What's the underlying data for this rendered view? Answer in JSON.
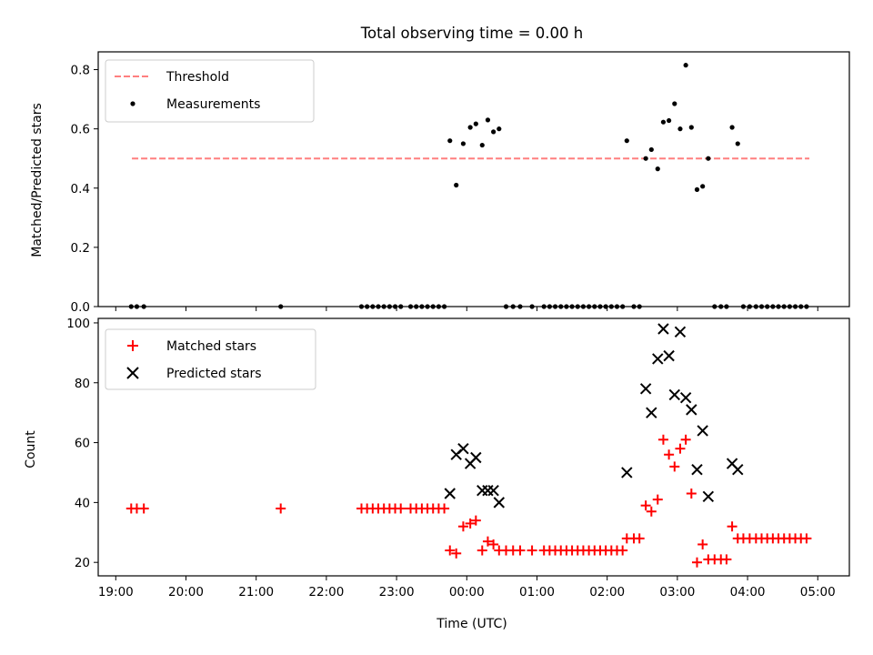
{
  "chart_data": [
    {
      "type": "scatter",
      "title": "Total observing time = 0.00 h",
      "xlabel": "",
      "ylabel": "Matched/Predicted stars",
      "xlim": [
        18.75,
        29.45
      ],
      "ylim": [
        0,
        0.86
      ],
      "yticks": [
        0.0,
        0.2,
        0.4,
        0.6,
        0.8
      ],
      "ytick_labels": [
        "0.0",
        "0.2",
        "0.4",
        "0.6",
        "0.8"
      ],
      "xticks": [
        19,
        20,
        21,
        22,
        23,
        24,
        25,
        26,
        27,
        28,
        29
      ],
      "legend_position": "top-left",
      "series": [
        {
          "name": "Threshold",
          "kind": "line",
          "style": "dashed",
          "color": "#ff7f7f",
          "x": [
            19.23,
            28.88
          ],
          "y": [
            0.5,
            0.5
          ]
        },
        {
          "name": "Measurements",
          "kind": "scatter",
          "marker": "dot",
          "color": "#000000",
          "x": [
            19.22,
            19.3,
            19.4,
            21.35,
            22.5,
            22.58,
            22.66,
            22.74,
            22.82,
            22.9,
            22.98,
            23.06,
            23.2,
            23.28,
            23.36,
            23.44,
            23.52,
            23.6,
            23.68,
            23.76,
            23.85,
            23.95,
            24.05,
            24.13,
            24.22,
            24.3,
            24.38,
            24.46,
            24.56,
            24.66,
            24.76,
            24.93,
            25.1,
            25.18,
            25.26,
            25.34,
            25.42,
            25.5,
            25.58,
            25.66,
            25.74,
            25.82,
            25.9,
            25.98,
            26.06,
            26.14,
            26.22,
            26.28,
            26.38,
            26.46,
            26.55,
            26.63,
            26.72,
            26.8,
            26.88,
            26.96,
            27.04,
            27.12,
            27.2,
            27.28,
            27.36,
            27.44,
            27.53,
            27.62,
            27.7,
            27.78,
            27.86,
            27.94,
            28.03,
            28.12,
            28.2,
            28.28,
            28.36,
            28.44,
            28.52,
            28.6,
            28.68,
            28.76,
            28.84
          ],
          "y": [
            0.0,
            0.0,
            0.0,
            0.0,
            0.0,
            0.0,
            0.0,
            0.0,
            0.0,
            0.0,
            0.0,
            0.0,
            0.0,
            0.0,
            0.0,
            0.0,
            0.0,
            0.0,
            0.0,
            0.56,
            0.41,
            0.55,
            0.605,
            0.617,
            0.545,
            0.63,
            0.59,
            0.6,
            0.0,
            0.0,
            0.0,
            0.0,
            0.0,
            0.0,
            0.0,
            0.0,
            0.0,
            0.0,
            0.0,
            0.0,
            0.0,
            0.0,
            0.0,
            0.0,
            0.0,
            0.0,
            0.0,
            0.56,
            0.0,
            0.0,
            0.5,
            0.53,
            0.465,
            0.623,
            0.628,
            0.685,
            0.6,
            0.815,
            0.605,
            0.395,
            0.406,
            0.5,
            0.0,
            0.0,
            0.0,
            0.605,
            0.55,
            0.0,
            0.0,
            0.0,
            0.0,
            0.0,
            0.0,
            0.0,
            0.0,
            0.0,
            0.0,
            0.0,
            0.0
          ]
        }
      ]
    },
    {
      "type": "scatter",
      "title": "",
      "xlabel": "Time (UTC)",
      "ylabel": "Count",
      "xlim": [
        18.75,
        29.45
      ],
      "ylim": [
        15.5,
        101.5
      ],
      "yticks": [
        20,
        40,
        60,
        80,
        100
      ],
      "xticks": [
        19,
        20,
        21,
        22,
        23,
        24,
        25,
        26,
        27,
        28,
        29
      ],
      "xtick_labels": [
        "19:00",
        "20:00",
        "21:00",
        "22:00",
        "23:00",
        "00:00",
        "01:00",
        "02:00",
        "03:00",
        "04:00",
        "05:00"
      ],
      "legend_position": "top-left",
      "series": [
        {
          "name": "Matched stars",
          "kind": "scatter",
          "marker": "plus",
          "color": "#ff0000",
          "x": [
            19.22,
            19.3,
            19.4,
            21.35,
            22.5,
            22.58,
            22.66,
            22.74,
            22.82,
            22.9,
            22.98,
            23.06,
            23.2,
            23.28,
            23.36,
            23.44,
            23.52,
            23.6,
            23.68,
            23.76,
            23.85,
            23.95,
            24.05,
            24.13,
            24.22,
            24.3,
            24.38,
            24.46,
            24.56,
            24.66,
            24.76,
            24.93,
            25.1,
            25.18,
            25.26,
            25.34,
            25.42,
            25.5,
            25.58,
            25.66,
            25.74,
            25.82,
            25.9,
            25.98,
            26.06,
            26.14,
            26.22,
            26.28,
            26.38,
            26.46,
            26.55,
            26.63,
            26.72,
            26.8,
            26.88,
            26.96,
            27.04,
            27.12,
            27.2,
            27.28,
            27.36,
            27.44,
            27.53,
            27.62,
            27.7,
            27.78,
            27.86,
            27.94,
            28.03,
            28.12,
            28.2,
            28.28,
            28.36,
            28.44,
            28.52,
            28.6,
            28.68,
            28.76,
            28.84
          ],
          "y": [
            38,
            38,
            38,
            38,
            38,
            38,
            38,
            38,
            38,
            38,
            38,
            38,
            38,
            38,
            38,
            38,
            38,
            38,
            38,
            24,
            23,
            32,
            33,
            34,
            24,
            27,
            26,
            24,
            24,
            24,
            24,
            24,
            24,
            24,
            24,
            24,
            24,
            24,
            24,
            24,
            24,
            24,
            24,
            24,
            24,
            24,
            24,
            28,
            28,
            28,
            39,
            37,
            41,
            61,
            56,
            52,
            58,
            61,
            43,
            20,
            26,
            21,
            21,
            21,
            21,
            32,
            28,
            28,
            28,
            28,
            28,
            28,
            28,
            28,
            28,
            28,
            28,
            28,
            28
          ]
        },
        {
          "name": "Predicted stars",
          "kind": "scatter",
          "marker": "x",
          "color": "#000000",
          "x": [
            23.76,
            23.85,
            23.95,
            24.05,
            24.13,
            24.22,
            24.3,
            24.38,
            24.46,
            26.28,
            26.55,
            26.63,
            26.72,
            26.8,
            26.88,
            26.96,
            27.04,
            27.12,
            27.2,
            27.28,
            27.36,
            27.44,
            27.78,
            27.86
          ],
          "y": [
            43,
            56,
            58,
            53,
            55,
            44,
            44,
            44,
            40,
            50,
            78,
            70,
            88,
            98,
            89,
            76,
            97,
            75,
            71,
            51,
            64,
            42,
            53,
            51
          ]
        }
      ]
    }
  ]
}
